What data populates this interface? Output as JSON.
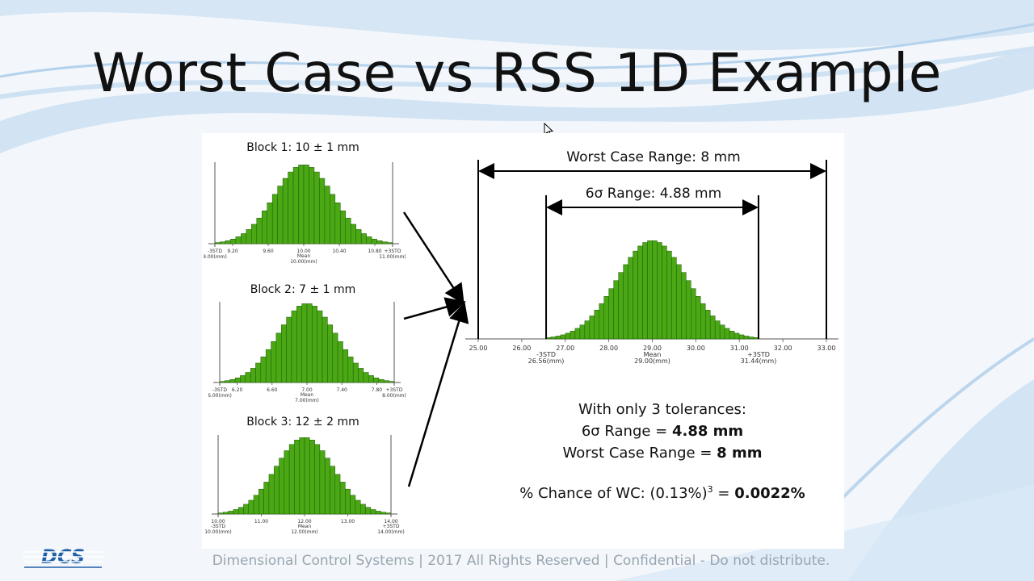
{
  "title": "Worst Case vs RSS 1D Example",
  "blocks": [
    {
      "label": "Block 1: 10 ± 1 mm",
      "mean": 10.0,
      "std": 0.3333,
      "lo": 9.0,
      "hi": 11.0,
      "ticks": [
        "9.20",
        "9.60",
        "10.00",
        "10.40",
        "10.80"
      ],
      "tick_values": [
        9.2,
        9.6,
        10.0,
        10.4,
        10.8
      ],
      "minus_label": "-3STD",
      "minus_value": "9.00(mm)",
      "plus_label": "+3STD",
      "plus_value": "11.00(mm)",
      "mean_label": "Mean",
      "mean_value": "10.00(mm)"
    },
    {
      "label": "Block 2: 7 ± 1 mm",
      "mean": 7.0,
      "std": 0.3333,
      "lo": 6.0,
      "hi": 8.0,
      "ticks": [
        "6.20",
        "6.60",
        "7.00",
        "7.40",
        "7.80"
      ],
      "tick_values": [
        6.2,
        6.6,
        7.0,
        7.4,
        7.8
      ],
      "minus_label": "-3STD",
      "minus_value": "6.00(mm)",
      "plus_label": "+3STD",
      "plus_value": "8.00(mm)",
      "mean_label": "Mean",
      "mean_value": "7.00(mm)"
    },
    {
      "label": "Block 3: 12 ± 2 mm",
      "mean": 12.0,
      "std": 0.6667,
      "lo": 10.0,
      "hi": 14.0,
      "ticks": [
        "11.00",
        "12.00",
        "13.00",
        "14.00"
      ],
      "tick_values": [
        11.0,
        12.0,
        13.0,
        14.0
      ],
      "minus_label": "-3STD",
      "minus_value": "10.00(mm)",
      "plus_label": "+3STD",
      "plus_value": "14.00(mm)",
      "mean_label": "Mean",
      "mean_value": "12.00(mm)",
      "left_tick": "10.00"
    }
  ],
  "result": {
    "mean": 29.0,
    "std": 0.8135,
    "axis_min": 25.0,
    "axis_max": 33.0,
    "ticks": [
      "25.00",
      "26.00",
      "27.00",
      "28.00",
      "29.00",
      "30.00",
      "31.00",
      "32.00",
      "33.00"
    ],
    "tick_values": [
      25,
      26,
      27,
      28,
      29,
      30,
      31,
      32,
      33
    ],
    "minus_label": "-3STD",
    "minus_value": "26.56(mm)",
    "minus_at": 26.56,
    "plus_label": "+3STD",
    "plus_value": "31.44(mm)",
    "plus_at": 31.44,
    "mean_label": "Mean",
    "mean_value": "29.00(mm)",
    "worst_case_label": "Worst Case Range: 8 mm",
    "six_sigma_label": "6σ Range: 4.88 mm"
  },
  "summary": {
    "line1": "With only 3 tolerances:",
    "line2_prefix": "6σ Range = ",
    "line2_value": "4.88 mm",
    "line3_prefix": "Worst Case Range = ",
    "line3_value": "8 mm",
    "chance_prefix": "% Chance of WC: (0.13%)",
    "chance_exp": "3",
    "chance_eq": " = ",
    "chance_value": "0.0022%"
  },
  "footer": "Dimensional Control Systems | 2017 All Rights Reserved | Confidential - Do not distribute.",
  "logo_text": "DCS",
  "colors": {
    "bar_fill": "#4aa814",
    "bar_stroke": "#1f5a08",
    "logo_blue": "#1f5fa8"
  }
}
